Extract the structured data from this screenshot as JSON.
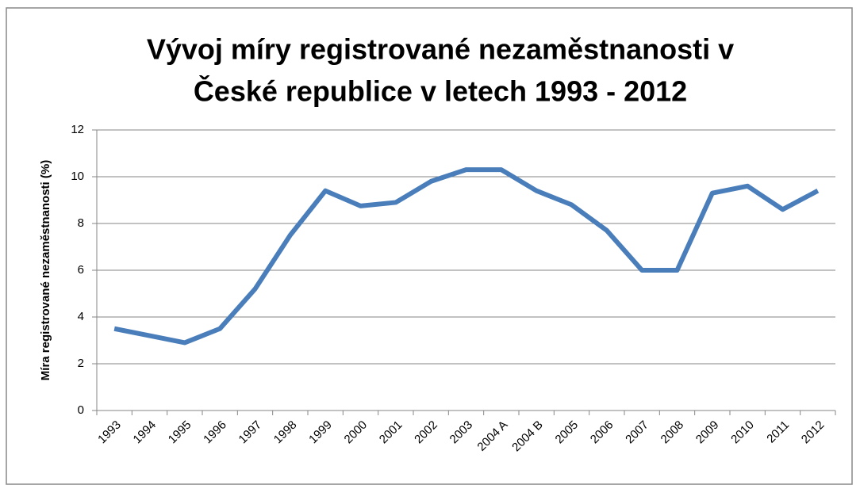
{
  "chart_data": {
    "type": "line",
    "title": [
      "Vývoj míry registrované nezaměstnanosti v",
      "České republice v letech 1993 - 2012"
    ],
    "y_label": "Míra registrované nezaměstnanosti (%)",
    "categories": [
      "1993",
      "1994",
      "1995",
      "1996",
      "1997",
      "1998",
      "1999",
      "2000",
      "2001",
      "2002",
      "2003",
      "2004 A",
      "2004 B",
      "2005",
      "2006",
      "2007",
      "2008",
      "2009",
      "2010",
      "2011",
      "2012"
    ],
    "series": [
      {
        "name": "Míra registrované nezaměstnanosti",
        "color": "#4a7ebb",
        "values": [
          3.5,
          3.2,
          2.9,
          3.5,
          5.2,
          7.5,
          9.4,
          8.75,
          8.9,
          9.8,
          10.3,
          10.3,
          9.4,
          8.8,
          7.7,
          6.0,
          6.0,
          9.3,
          9.6,
          8.6,
          9.4
        ]
      }
    ],
    "ylim": [
      0,
      12
    ],
    "yticks": [
      0,
      2,
      4,
      6,
      8,
      10,
      12
    ],
    "grid": true
  }
}
